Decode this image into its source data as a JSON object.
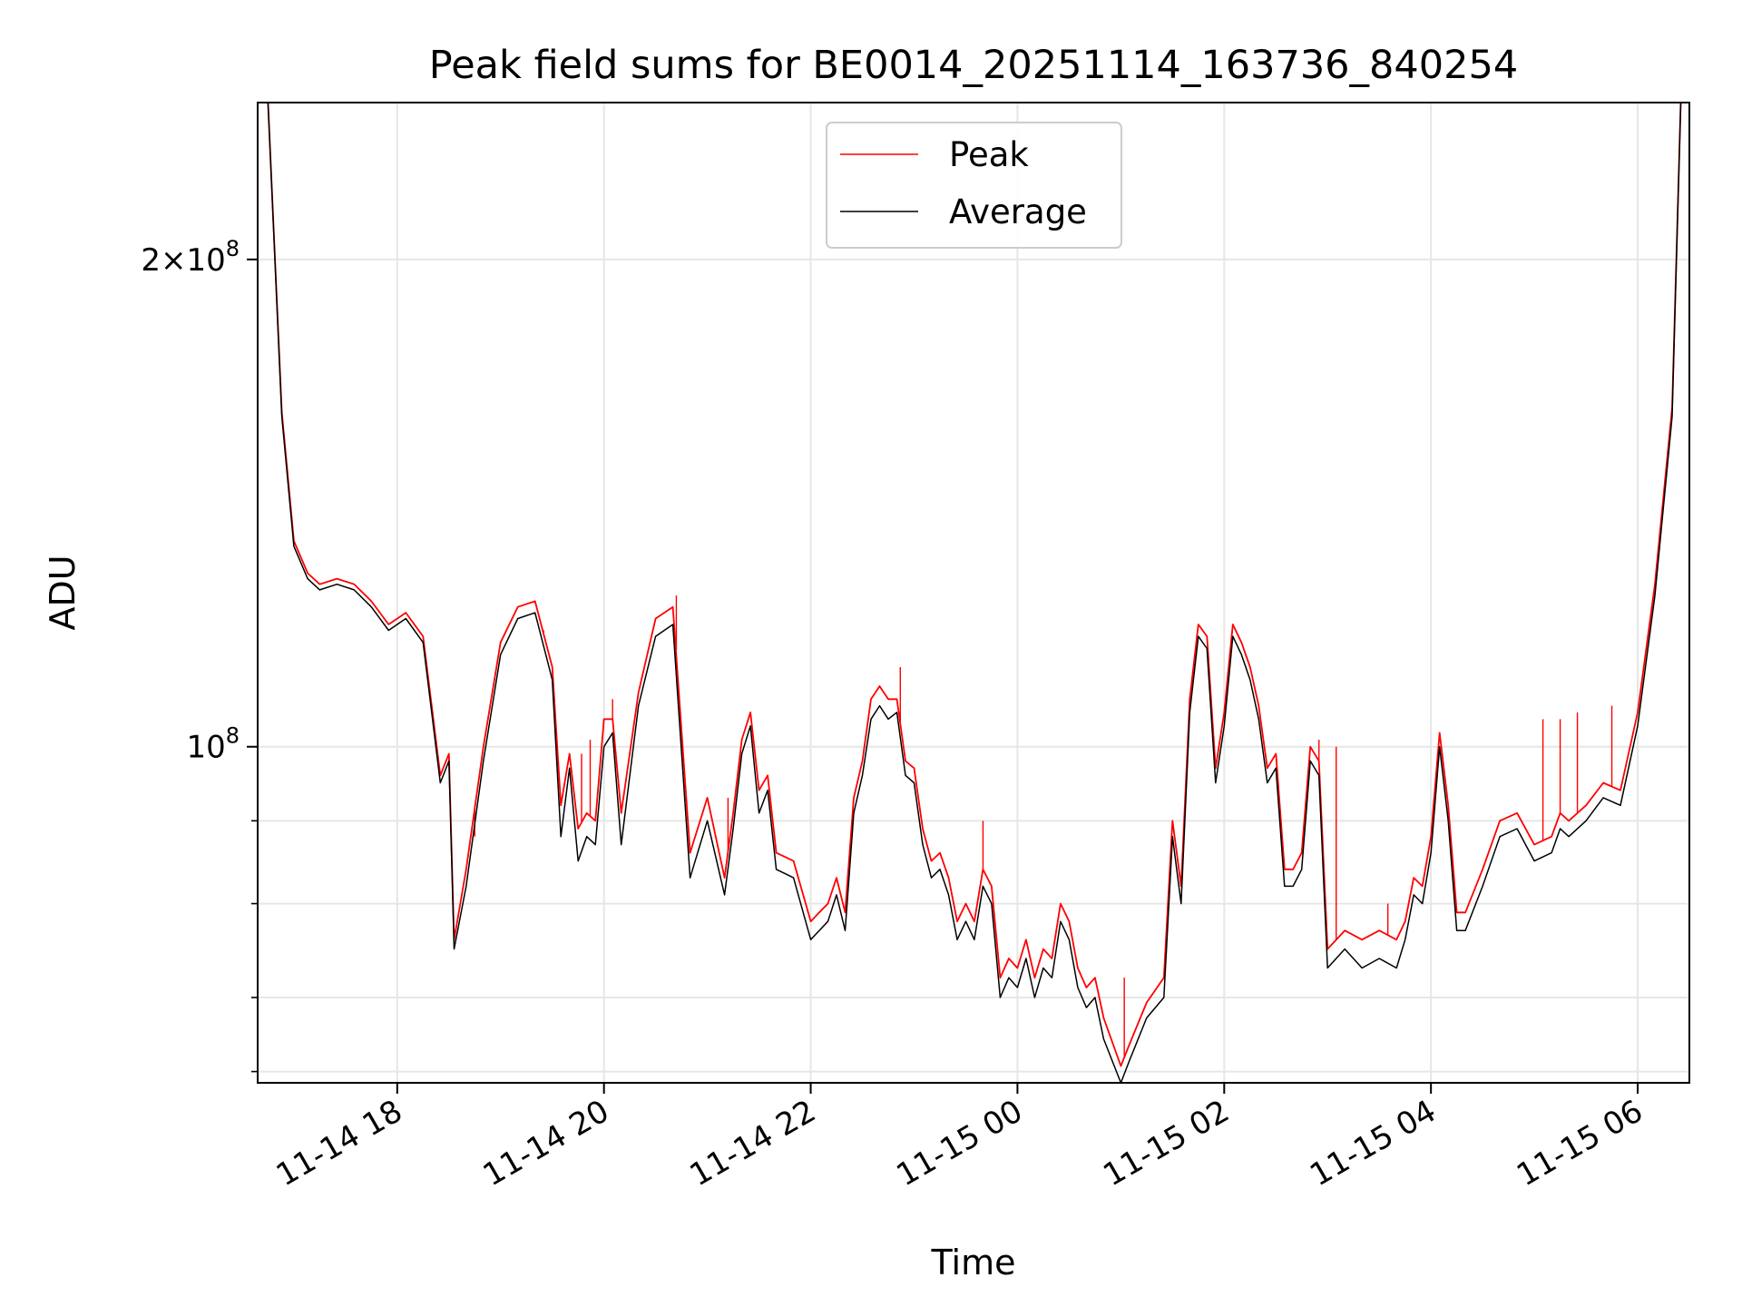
{
  "chart_data": {
    "type": "line",
    "title": "Peak field sums for BE0014_20251114_163736_840254",
    "xlabel": "Time",
    "ylabel": "ADU",
    "y_scale": "log",
    "ylim": [
      62000000,
      250000000
    ],
    "xlim": [
      "2025-11-14 16:39",
      "2025-11-15 06:30"
    ],
    "grid": true,
    "legend": {
      "location": "upper-center",
      "entries": [
        "Peak",
        "Average"
      ]
    },
    "x_ticks": [
      {
        "time": "2025-11-14 18:00",
        "label": "11-14 18"
      },
      {
        "time": "2025-11-14 20:00",
        "label": "11-14 20"
      },
      {
        "time": "2025-11-14 22:00",
        "label": "11-14 22"
      },
      {
        "time": "2025-11-15 00:00",
        "label": "11-15 00"
      },
      {
        "time": "2025-11-15 02:00",
        "label": "11-15 02"
      },
      {
        "time": "2025-11-15 04:00",
        "label": "11-15 04"
      },
      {
        "time": "2025-11-15 06:00",
        "label": "11-15 06"
      }
    ],
    "y_major_ticks": [
      {
        "value": 100000000,
        "label": "10^8"
      },
      {
        "value": 200000000,
        "label": "2×10^8"
      }
    ],
    "y_minor_ticks": [
      63000000,
      70000000,
      80000000,
      90000000
    ],
    "colors": {
      "peak": "#ff0000",
      "average": "#000000",
      "grid": "#e6e6e6"
    },
    "series": [
      {
        "name": "Average",
        "x": [
          "2025-11-14 16:45",
          "2025-11-14 16:53",
          "2025-11-14 17:00",
          "2025-11-14 17:08",
          "2025-11-14 17:15",
          "2025-11-14 17:25",
          "2025-11-14 17:35",
          "2025-11-14 17:45",
          "2025-11-14 17:55",
          "2025-11-14 18:05",
          "2025-11-14 18:15",
          "2025-11-14 18:20",
          "2025-11-14 18:25",
          "2025-11-14 18:30",
          "2025-11-14 18:33",
          "2025-11-14 18:40",
          "2025-11-14 18:50",
          "2025-11-14 19:00",
          "2025-11-14 19:10",
          "2025-11-14 19:20",
          "2025-11-14 19:30",
          "2025-11-14 19:35",
          "2025-11-14 19:40",
          "2025-11-14 19:45",
          "2025-11-14 19:50",
          "2025-11-14 19:55",
          "2025-11-14 20:00",
          "2025-11-14 20:05",
          "2025-11-14 20:10",
          "2025-11-14 20:20",
          "2025-11-14 20:30",
          "2025-11-14 20:40",
          "2025-11-14 20:50",
          "2025-11-14 21:00",
          "2025-11-14 21:10",
          "2025-11-14 21:15",
          "2025-11-14 21:20",
          "2025-11-14 21:25",
          "2025-11-14 21:30",
          "2025-11-14 21:35",
          "2025-11-14 21:40",
          "2025-11-14 21:50",
          "2025-11-14 22:00",
          "2025-11-14 22:05",
          "2025-11-14 22:10",
          "2025-11-14 22:15",
          "2025-11-14 22:20",
          "2025-11-14 22:25",
          "2025-11-14 22:30",
          "2025-11-14 22:35",
          "2025-11-14 22:40",
          "2025-11-14 22:45",
          "2025-11-14 22:50",
          "2025-11-14 22:55",
          "2025-11-14 23:00",
          "2025-11-14 23:05",
          "2025-11-14 23:10",
          "2025-11-14 23:15",
          "2025-11-14 23:20",
          "2025-11-14 23:25",
          "2025-11-14 23:30",
          "2025-11-14 23:35",
          "2025-11-14 23:40",
          "2025-11-14 23:45",
          "2025-11-14 23:50",
          "2025-11-14 23:55",
          "2025-11-15 00:00",
          "2025-11-15 00:05",
          "2025-11-15 00:10",
          "2025-11-15 00:15",
          "2025-11-15 00:20",
          "2025-11-15 00:25",
          "2025-11-15 00:30",
          "2025-11-15 00:35",
          "2025-11-15 00:40",
          "2025-11-15 00:45",
          "2025-11-15 00:50",
          "2025-11-15 01:00",
          "2025-11-15 01:05",
          "2025-11-15 01:15",
          "2025-11-15 01:25",
          "2025-11-15 01:30",
          "2025-11-15 01:35",
          "2025-11-15 01:40",
          "2025-11-15 01:45",
          "2025-11-15 01:50",
          "2025-11-15 01:55",
          "2025-11-15 02:00",
          "2025-11-15 02:05",
          "2025-11-15 02:10",
          "2025-11-15 02:15",
          "2025-11-15 02:20",
          "2025-11-15 02:25",
          "2025-11-15 02:30",
          "2025-11-15 02:35",
          "2025-11-15 02:40",
          "2025-11-15 02:45",
          "2025-11-15 02:50",
          "2025-11-15 02:55",
          "2025-11-15 03:00",
          "2025-11-15 03:10",
          "2025-11-15 03:20",
          "2025-11-15 03:30",
          "2025-11-15 03:40",
          "2025-11-15 03:45",
          "2025-11-15 03:50",
          "2025-11-15 03:55",
          "2025-11-15 04:00",
          "2025-11-15 04:05",
          "2025-11-15 04:10",
          "2025-11-15 04:15",
          "2025-11-15 04:20",
          "2025-11-15 04:30",
          "2025-11-15 04:40",
          "2025-11-15 04:50",
          "2025-11-15 05:00",
          "2025-11-15 05:10",
          "2025-11-15 05:15",
          "2025-11-15 05:20",
          "2025-11-15 05:30",
          "2025-11-15 05:40",
          "2025-11-15 05:50",
          "2025-11-15 06:00",
          "2025-11-15 06:10",
          "2025-11-15 06:20",
          "2025-11-15 06:25"
        ],
        "values": [
          250000000,
          160000000,
          133000000,
          127000000,
          125000000,
          126000000,
          125000000,
          122000000,
          118000000,
          120000000,
          116000000,
          105000000,
          95000000,
          98000000,
          75000000,
          82000000,
          98000000,
          114000000,
          120000000,
          121000000,
          110000000,
          88000000,
          97000000,
          85000000,
          88000000,
          87000000,
          100000000,
          102000000,
          87000000,
          106000000,
          117000000,
          119000000,
          83000000,
          90000000,
          81000000,
          89000000,
          99000000,
          103000000,
          91000000,
          94000000,
          84000000,
          83000000,
          76000000,
          77000000,
          78000000,
          81000000,
          77000000,
          91000000,
          96000000,
          104000000,
          106000000,
          104000000,
          105000000,
          96000000,
          95000000,
          87000000,
          83000000,
          84000000,
          81000000,
          76000000,
          78000000,
          76000000,
          82000000,
          80000000,
          70000000,
          72000000,
          71000000,
          74000000,
          70000000,
          73000000,
          72000000,
          78000000,
          76000000,
          71000000,
          69000000,
          70000000,
          66000000,
          62000000,
          64000000,
          68000000,
          70000000,
          88000000,
          80000000,
          105000000,
          117000000,
          115000000,
          95000000,
          103000000,
          117000000,
          114000000,
          110000000,
          104000000,
          95000000,
          97000000,
          82000000,
          82000000,
          84000000,
          98000000,
          96000000,
          73000000,
          75000000,
          73000000,
          74000000,
          73000000,
          76000000,
          81000000,
          80000000,
          86000000,
          100000000,
          90000000,
          77000000,
          77000000,
          82000000,
          88000000,
          89000000,
          85000000,
          86000000,
          89000000,
          88000000,
          90000000,
          93000000,
          92000000,
          103000000,
          124000000,
          160000000,
          250000000
        ]
      },
      {
        "name": "Peak",
        "x": [
          "2025-11-14 16:45",
          "2025-11-14 16:53",
          "2025-11-14 17:00",
          "2025-11-14 17:08",
          "2025-11-14 17:15",
          "2025-11-14 17:25",
          "2025-11-14 17:35",
          "2025-11-14 17:45",
          "2025-11-14 17:55",
          "2025-11-14 18:05",
          "2025-11-14 18:15",
          "2025-11-14 18:20",
          "2025-11-14 18:25",
          "2025-11-14 18:30",
          "2025-11-14 18:33",
          "2025-11-14 18:40",
          "2025-11-14 18:50",
          "2025-11-14 19:00",
          "2025-11-14 19:10",
          "2025-11-14 19:20",
          "2025-11-14 19:30",
          "2025-11-14 19:35",
          "2025-11-14 19:40",
          "2025-11-14 19:45",
          "2025-11-14 19:50",
          "2025-11-14 19:55",
          "2025-11-14 20:00",
          "2025-11-14 20:05",
          "2025-11-14 20:10",
          "2025-11-14 20:20",
          "2025-11-14 20:30",
          "2025-11-14 20:40",
          "2025-11-14 20:50",
          "2025-11-14 21:00",
          "2025-11-14 21:10",
          "2025-11-14 21:15",
          "2025-11-14 21:20",
          "2025-11-14 21:25",
          "2025-11-14 21:30",
          "2025-11-14 21:35",
          "2025-11-14 21:40",
          "2025-11-14 21:50",
          "2025-11-14 22:00",
          "2025-11-14 22:05",
          "2025-11-14 22:10",
          "2025-11-14 22:15",
          "2025-11-14 22:20",
          "2025-11-14 22:25",
          "2025-11-14 22:30",
          "2025-11-14 22:35",
          "2025-11-14 22:40",
          "2025-11-14 22:45",
          "2025-11-14 22:50",
          "2025-11-14 22:55",
          "2025-11-14 23:00",
          "2025-11-14 23:05",
          "2025-11-14 23:10",
          "2025-11-14 23:15",
          "2025-11-14 23:20",
          "2025-11-14 23:25",
          "2025-11-14 23:30",
          "2025-11-14 23:35",
          "2025-11-14 23:40",
          "2025-11-14 23:45",
          "2025-11-14 23:50",
          "2025-11-14 23:55",
          "2025-11-15 00:00",
          "2025-11-15 00:05",
          "2025-11-15 00:10",
          "2025-11-15 00:15",
          "2025-11-15 00:20",
          "2025-11-15 00:25",
          "2025-11-15 00:30",
          "2025-11-15 00:35",
          "2025-11-15 00:40",
          "2025-11-15 00:45",
          "2025-11-15 00:50",
          "2025-11-15 01:00",
          "2025-11-15 01:05",
          "2025-11-15 01:15",
          "2025-11-15 01:25",
          "2025-11-15 01:30",
          "2025-11-15 01:35",
          "2025-11-15 01:40",
          "2025-11-15 01:45",
          "2025-11-15 01:50",
          "2025-11-15 01:55",
          "2025-11-15 02:00",
          "2025-11-15 02:05",
          "2025-11-15 02:10",
          "2025-11-15 02:15",
          "2025-11-15 02:20",
          "2025-11-15 02:25",
          "2025-11-15 02:30",
          "2025-11-15 02:35",
          "2025-11-15 02:40",
          "2025-11-15 02:45",
          "2025-11-15 02:50",
          "2025-11-15 02:55",
          "2025-11-15 03:00",
          "2025-11-15 03:10",
          "2025-11-15 03:20",
          "2025-11-15 03:30",
          "2025-11-15 03:40",
          "2025-11-15 03:45",
          "2025-11-15 03:50",
          "2025-11-15 03:55",
          "2025-11-15 04:00",
          "2025-11-15 04:05",
          "2025-11-15 04:10",
          "2025-11-15 04:15",
          "2025-11-15 04:20",
          "2025-11-15 04:30",
          "2025-11-15 04:40",
          "2025-11-15 04:50",
          "2025-11-15 05:00",
          "2025-11-15 05:10",
          "2025-11-15 05:15",
          "2025-11-15 05:20",
          "2025-11-15 05:30",
          "2025-11-15 05:40",
          "2025-11-15 05:50",
          "2025-11-15 06:00",
          "2025-11-15 06:10",
          "2025-11-15 06:20",
          "2025-11-15 06:25"
        ],
        "values": [
          250000000,
          161000000,
          134000000,
          128000000,
          126000000,
          127000000,
          126000000,
          123000000,
          119000000,
          121000000,
          117000000,
          106000000,
          96000000,
          99000000,
          76000000,
          84000000,
          100000000,
          116000000,
          122000000,
          123000000,
          112000000,
          92000000,
          99000000,
          89000000,
          91000000,
          90000000,
          104000000,
          104000000,
          91000000,
          108000000,
          120000000,
          122000000,
          86000000,
          93000000,
          83000000,
          91000000,
          101000000,
          105000000,
          94000000,
          96000000,
          86000000,
          85000000,
          78000000,
          79000000,
          80000000,
          83000000,
          79000000,
          93000000,
          98000000,
          107000000,
          109000000,
          107000000,
          107000000,
          98000000,
          97000000,
          89000000,
          85000000,
          86000000,
          83000000,
          78000000,
          80000000,
          78000000,
          84000000,
          82000000,
          72000000,
          74000000,
          73000000,
          76000000,
          72000000,
          75000000,
          74000000,
          80000000,
          78000000,
          73000000,
          71000000,
          72000000,
          68000000,
          63500000,
          65500000,
          69500000,
          72000000,
          90000000,
          82000000,
          107000000,
          119000000,
          117000000,
          97000000,
          105000000,
          119000000,
          116000000,
          112000000,
          106000000,
          97000000,
          99000000,
          84000000,
          84000000,
          86000000,
          100000000,
          98000000,
          75000000,
          77000000,
          76000000,
          77000000,
          76000000,
          78000000,
          83000000,
          82000000,
          88000000,
          102000000,
          92000000,
          79000000,
          79000000,
          84000000,
          90000000,
          91000000,
          87000000,
          88000000,
          91000000,
          90000000,
          92000000,
          95000000,
          94000000,
          105000000,
          126000000,
          162000000,
          250000000
        ]
      }
    ],
    "peak_spikes": [
      {
        "x": "2025-11-14 18:45",
        "value": 88000000
      },
      {
        "x": "2025-11-14 19:25",
        "value": 118000000
      },
      {
        "x": "2025-11-14 19:47",
        "value": 99000000
      },
      {
        "x": "2025-11-14 19:52",
        "value": 101000000
      },
      {
        "x": "2025-11-14 20:05",
        "value": 107000000
      },
      {
        "x": "2025-11-14 20:42",
        "value": 124000000
      },
      {
        "x": "2025-11-14 21:12",
        "value": 93000000
      },
      {
        "x": "2025-11-14 22:52",
        "value": 112000000
      },
      {
        "x": "2025-11-14 23:40",
        "value": 90000000
      },
      {
        "x": "2025-11-15 01:02",
        "value": 72000000
      },
      {
        "x": "2025-11-15 02:55",
        "value": 101000000
      },
      {
        "x": "2025-11-15 03:05",
        "value": 100000000
      },
      {
        "x": "2025-11-15 03:35",
        "value": 80000000
      },
      {
        "x": "2025-11-15 05:05",
        "value": 104000000
      },
      {
        "x": "2025-11-15 05:15",
        "value": 104000000
      },
      {
        "x": "2025-11-15 05:25",
        "value": 105000000
      },
      {
        "x": "2025-11-15 05:45",
        "value": 106000000
      }
    ]
  }
}
